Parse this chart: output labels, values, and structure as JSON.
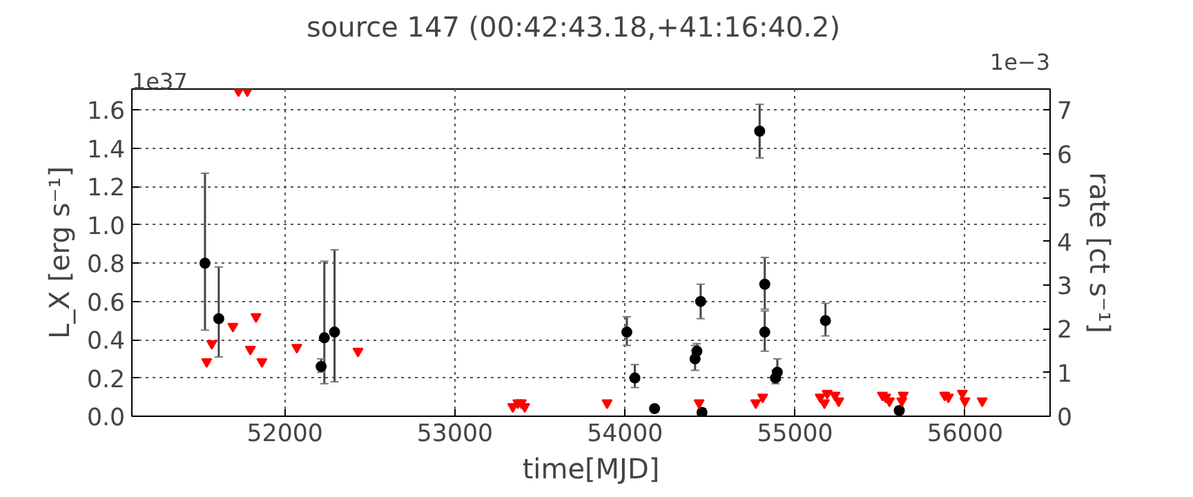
{
  "chart_data": {
    "type": "scatter",
    "title": "source 147     (00:42:43.18,+41:16:40.2)",
    "xlabel": "time[MJD]",
    "ylabel": "L_X [erg s⁻¹]",
    "y2label": "rate [ct s⁻¹]",
    "annotations": [
      "1e37",
      "1e−3"
    ],
    "series": [
      {
        "name": null,
        "marker": "circle",
        "color": "#000000",
        "x": [
          51530,
          51611,
          52213,
          52232,
          52292,
          54011,
          54058,
          54174,
          54412,
          54423,
          54445,
          54453,
          54792,
          54822,
          54822,
          54885,
          54896,
          55179,
          55613
        ],
        "values": [
          0.8,
          0.51,
          0.26,
          0.41,
          0.44,
          0.44,
          0.2,
          0.04,
          0.3,
          0.34,
          0.6,
          0.02,
          1.49,
          0.69,
          0.44,
          0.2,
          0.23,
          0.5,
          0.03
        ],
        "errors": [
          [
            0.45,
            1.27
          ],
          [
            0.31,
            0.78
          ],
          [
            0.23,
            0.3
          ],
          [
            0.17,
            0.81
          ],
          [
            0.18,
            0.87
          ],
          [
            0.37,
            0.52
          ],
          [
            0.15,
            0.27
          ],
          [
            0.025,
            0.055
          ],
          [
            0.24,
            0.37
          ],
          [
            0.3,
            0.38
          ],
          [
            0.51,
            0.69
          ],
          [
            0.01,
            0.04
          ],
          [
            1.35,
            1.63
          ],
          [
            0.56,
            0.83
          ],
          [
            0.34,
            0.55
          ],
          [
            0.17,
            0.24
          ],
          [
            0.19,
            0.3
          ],
          [
            0.42,
            0.59
          ],
          [
            0.01,
            0.05
          ]
        ]
      },
      {
        "name": null,
        "marker": "triangle",
        "color": "#ff0000",
        "x": [
          51540,
          51570,
          51694,
          51727,
          51779,
          51797,
          51830,
          51865,
          52070,
          52430,
          53340,
          53370,
          53390,
          53410,
          53895,
          54436,
          54769,
          54810,
          55148,
          55173,
          55189,
          55235,
          55257,
          55514,
          55533,
          55555,
          55636,
          55628,
          55880,
          55902,
          55984,
          55999,
          56101
        ],
        "values": [
          0.285,
          0.38,
          0.47,
          1.7,
          1.7,
          0.35,
          0.52,
          0.285,
          0.36,
          0.34,
          0.05,
          0.07,
          0.07,
          0.05,
          0.07,
          0.07,
          0.07,
          0.1,
          0.1,
          0.07,
          0.12,
          0.11,
          0.08,
          0.11,
          0.1,
          0.08,
          0.11,
          0.08,
          0.11,
          0.1,
          0.12,
          0.08,
          0.08
        ]
      }
    ],
    "xlim": [
      51100,
      56500
    ],
    "xticks": [
      52000,
      53000,
      54000,
      55000,
      56000
    ],
    "ylim": [
      0,
      1.71
    ],
    "yticks": [
      {
        "value": 0,
        "label": "0.0"
      },
      {
        "value": 0.2,
        "label": "0.2"
      },
      {
        "value": 0.4,
        "label": "0.4"
      },
      {
        "value": 0.6,
        "label": "0.6"
      },
      {
        "value": 0.8,
        "label": "0.8"
      },
      {
        "value": 1.0,
        "label": "1.0"
      },
      {
        "value": 1.2,
        "label": "1.2"
      },
      {
        "value": 1.4,
        "label": "1.4"
      },
      {
        "value": 1.6,
        "label": "1.6"
      }
    ],
    "y2lim": [
      0,
      7.48
    ],
    "y2ticks": [
      0,
      1,
      2,
      3,
      4,
      5,
      6,
      7
    ],
    "grid": true,
    "line_style": "dotted"
  }
}
